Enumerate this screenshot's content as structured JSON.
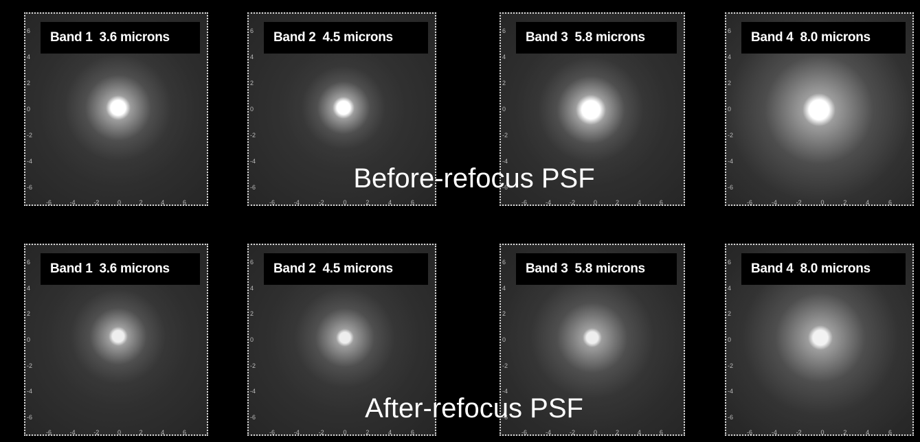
{
  "rows": [
    {
      "caption": "Before-refocus PSF",
      "panels": [
        {
          "label": "Band 1  3.6 microns"
        },
        {
          "label": "Band 2  4.5 microns"
        },
        {
          "label": "Band 3  5.8 microns"
        },
        {
          "label": "Band 4  8.0 microns"
        }
      ]
    },
    {
      "caption": "After-refocus PSF",
      "panels": [
        {
          "label": "Band 1  3.6 microns"
        },
        {
          "label": "Band 2  4.5 microns"
        },
        {
          "label": "Band 3  5.8 microns"
        },
        {
          "label": "Band 4  8.0 microns"
        }
      ]
    }
  ],
  "axis_ticks": [
    "-6",
    "-4",
    "-2",
    "0",
    "2",
    "4",
    "6"
  ]
}
